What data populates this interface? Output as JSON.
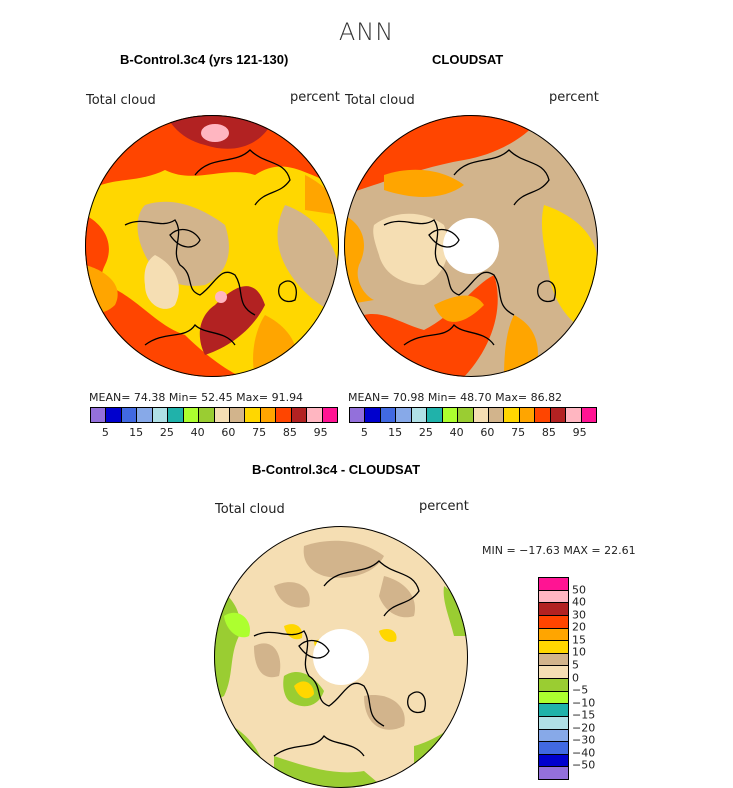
{
  "page_title": "ANN",
  "panels": [
    {
      "title": "B-Control.3c4 (yrs 121-130)",
      "variable": "Total cloud",
      "units": "percent",
      "stats": "MEAN=  74.38   Min=  52.45   Max=  91.94",
      "colorbar_ticks": [
        "5",
        "15",
        "25",
        "40",
        "60",
        "75",
        "85",
        "95"
      ]
    },
    {
      "title": "CLOUDSAT",
      "variable": "Total cloud",
      "units": "percent",
      "stats": "MEAN=  70.98   Min=  48.70   Max=  86.82",
      "colorbar_ticks": [
        "5",
        "15",
        "25",
        "40",
        "60",
        "75",
        "85",
        "95"
      ]
    },
    {
      "title": "B-Control.3c4 - CLOUDSAT",
      "variable": "Total cloud",
      "units": "percent",
      "stats": "MIN = −17.63 MAX =  22.61",
      "colorbar_ticks": [
        "50",
        "40",
        "30",
        "20",
        "15",
        "10",
        "5",
        "0",
        "−5",
        "−10",
        "−15",
        "−20",
        "−30",
        "−40",
        "−50"
      ]
    }
  ],
  "colors": {
    "abs_scale": [
      "#9370db",
      "#0000cd",
      "#4169e1",
      "#87a9e8",
      "#b0e0e6",
      "#20b2aa",
      "#adff2f",
      "#9acd32",
      "#f5deb3",
      "#d2b48c",
      "#ffd700",
      "#ffa500",
      "#ff4500",
      "#b22222",
      "#ffb6c1",
      "#ff1493"
    ],
    "diff_scale": [
      "#ff1493",
      "#ffb6c1",
      "#b22222",
      "#ff4500",
      "#ffa500",
      "#ffd700",
      "#d2b48c",
      "#f5deb3",
      "#9acd32",
      "#adff2f",
      "#20b2aa",
      "#b0e0e6",
      "#87a9e8",
      "#4169e1",
      "#0000cd",
      "#9370db"
    ],
    "coastline": "#000000",
    "missing": "#ffffff"
  }
}
